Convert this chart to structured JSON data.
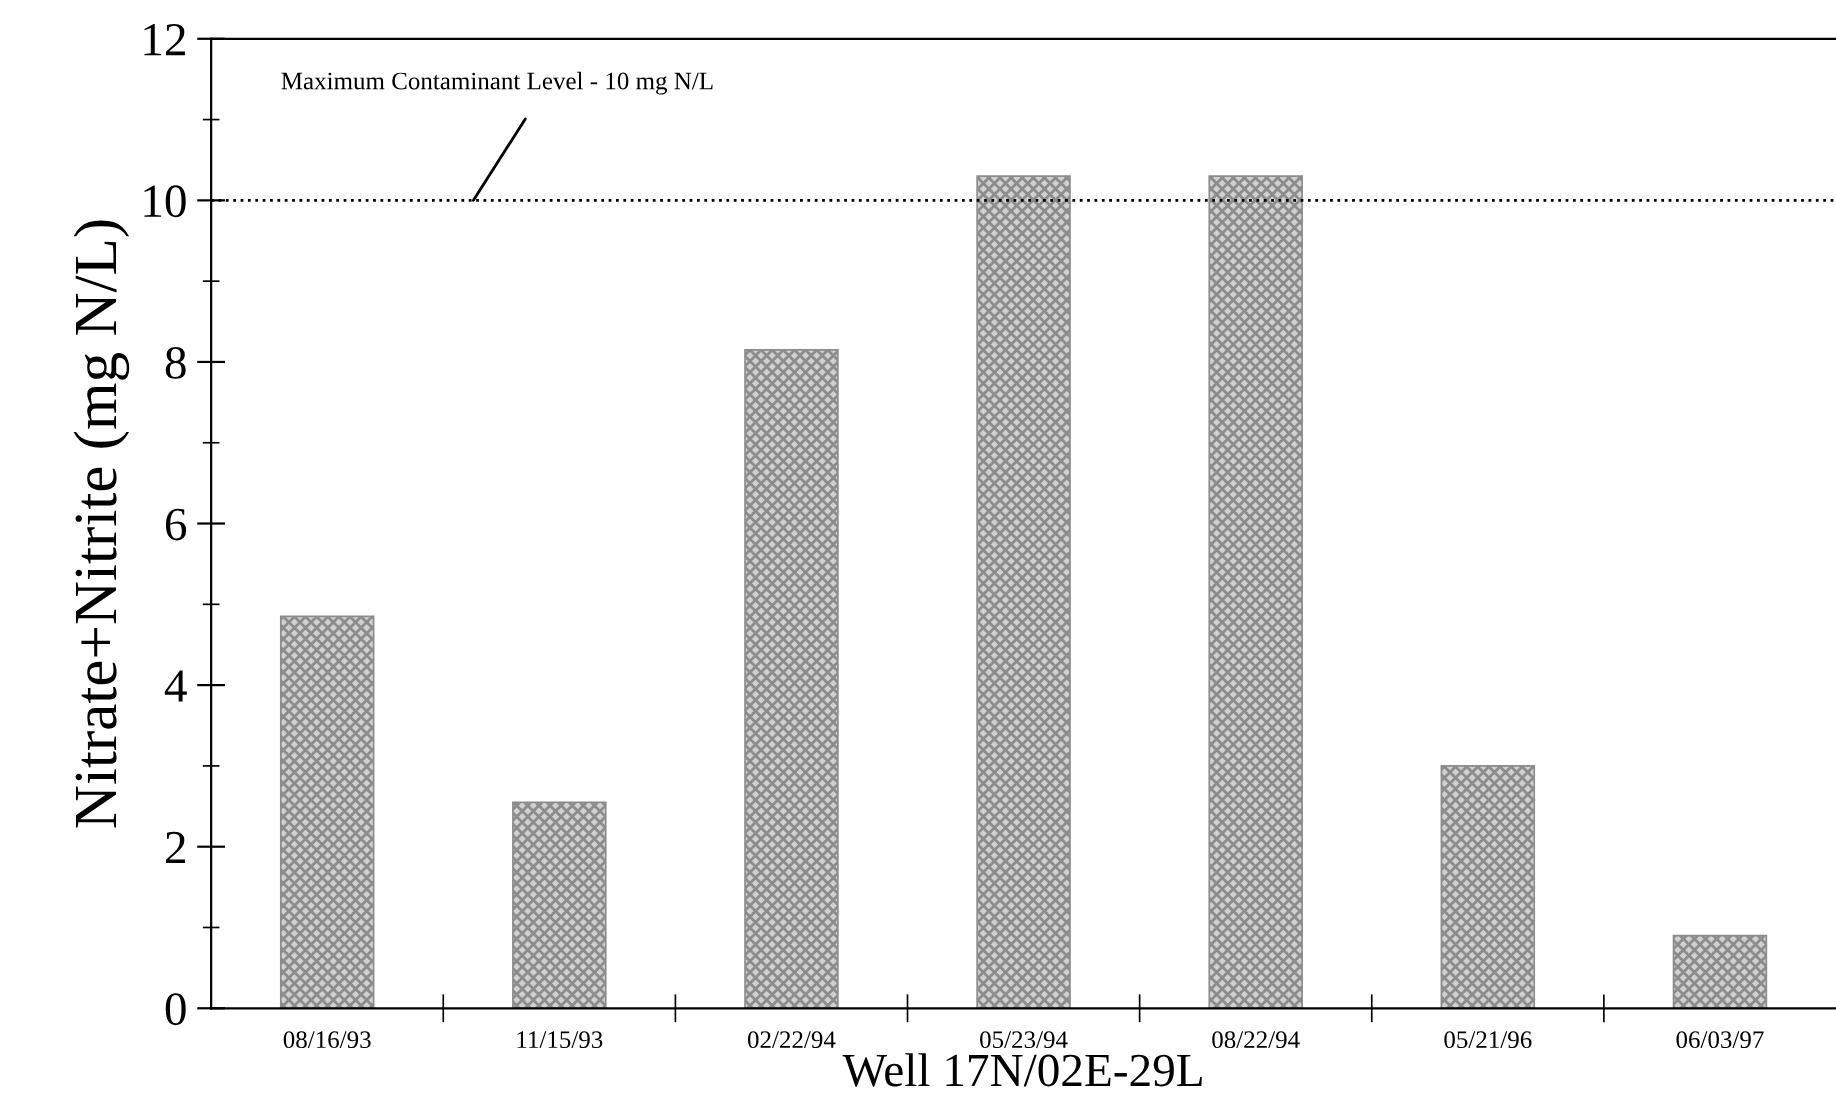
{
  "chart_data": {
    "type": "bar",
    "xlabel": "Well 17N/02E-29L",
    "ylabel": "Nitrate+Nitrite (mg N/L)",
    "categories": [
      "08/16/93",
      "11/15/93",
      "02/22/94",
      "05/23/94",
      "08/22/94",
      "05/21/96",
      "06/03/97"
    ],
    "values": [
      4.85,
      2.55,
      8.15,
      10.3,
      10.3,
      3.0,
      0.9
    ],
    "color": "#8c8c8c",
    "ylim": [
      0,
      12
    ],
    "yticks": [
      0,
      2,
      4,
      6,
      8,
      10,
      12
    ],
    "ref_lines": [
      {
        "axis": "y",
        "value": 10,
        "label": "Maximum Contaminant Level - 10 mg N/L",
        "color": "#000000",
        "line_style": "dotted"
      }
    ],
    "grid": false,
    "legend": false
  }
}
